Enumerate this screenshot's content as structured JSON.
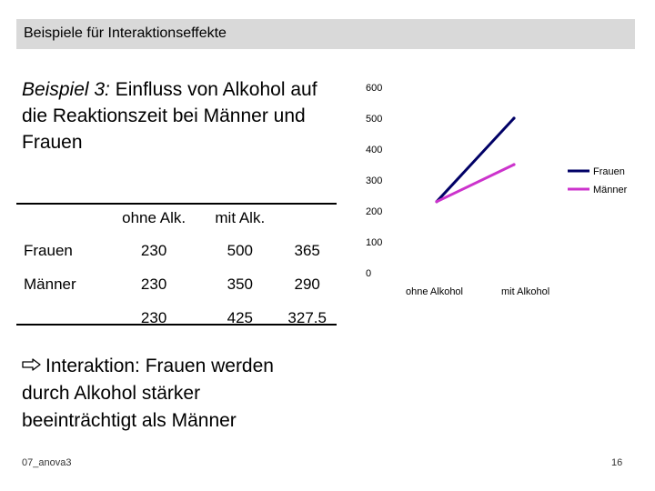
{
  "header": {
    "title": "Beispiele für Interaktionseffekte"
  },
  "heading": {
    "prefix": "Beispiel 3:",
    "text": " Einfluss von Alkohol auf die Reaktionszeit bei Männer und Frauen"
  },
  "table": {
    "columns": [
      "",
      "ohne Alk.",
      "mit Alk.",
      ""
    ],
    "rows": [
      {
        "label": "Frauen",
        "cells": [
          "230",
          "500",
          "365"
        ]
      },
      {
        "label": "Männer",
        "cells": [
          "230",
          "350",
          "290"
        ]
      },
      {
        "label": "",
        "cells": [
          "230",
          "425",
          "327.5"
        ]
      }
    ]
  },
  "conclusion": {
    "icon": "hollow-arrow-right-icon",
    "text": "Interaktion: Frauen werden durch Alkohol stärker beeinträchtigt als Männer"
  },
  "footer": {
    "left": "07_anova3",
    "page": "16"
  },
  "chart_data": {
    "type": "line",
    "categories": [
      "ohne Alkohol",
      "mit Alkohol"
    ],
    "series": [
      {
        "name": "Frauen",
        "values": [
          230,
          500
        ],
        "color": "#000066"
      },
      {
        "name": "Männer",
        "values": [
          230,
          350
        ],
        "color": "#cc33cc"
      }
    ],
    "ylim": [
      0,
      600
    ],
    "yticks": [
      "0",
      "100",
      "200",
      "300",
      "400",
      "500",
      "600"
    ],
    "grid": false,
    "legend": "right"
  }
}
